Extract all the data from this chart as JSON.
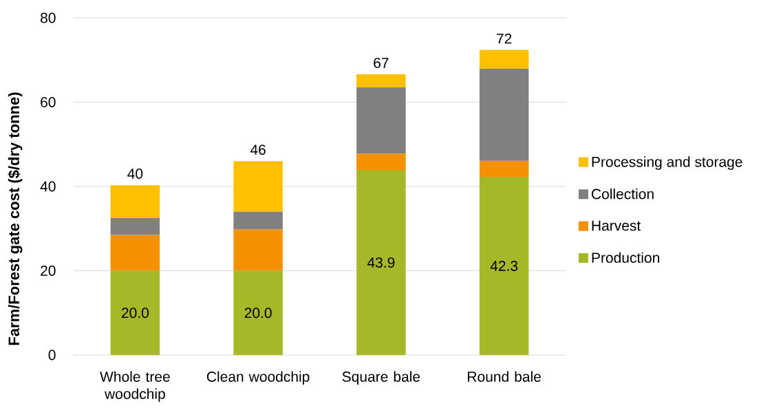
{
  "chart_data": {
    "type": "bar",
    "stacked": true,
    "ylabel": "Farm/Forest gate cost ($/dry tonne)",
    "categories": [
      "Whole tree woodchip",
      "Clean woodchip",
      "Square bale",
      "Round bale"
    ],
    "series": [
      {
        "name": "Production",
        "color": "#a6b828",
        "values": [
          20.0,
          20.0,
          43.9,
          42.3
        ],
        "value_labels": [
          "20.0",
          "20.0",
          "43.9",
          "42.3"
        ]
      },
      {
        "name": "Harvest",
        "color": "#f49100",
        "values": [
          8.5,
          9.8,
          3.9,
          3.8
        ]
      },
      {
        "name": "Collection",
        "color": "#808080",
        "values": [
          4.0,
          4.2,
          15.7,
          21.8
        ]
      },
      {
        "name": "Processing and storage",
        "color": "#ffc000",
        "values": [
          7.8,
          12.0,
          3.1,
          4.5
        ]
      }
    ],
    "totals": [
      "40",
      "46",
      "67",
      "72"
    ],
    "ylim": [
      0,
      80
    ],
    "yticks": [
      0,
      20,
      40,
      60,
      80
    ],
    "grid": "y",
    "legend": "right"
  }
}
